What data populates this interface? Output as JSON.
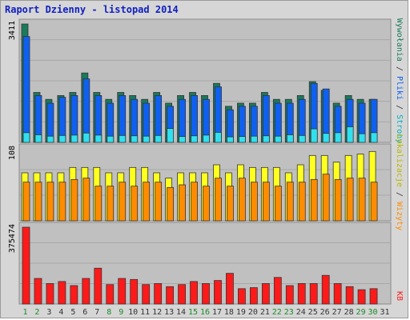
{
  "title": "Raport Dzienny -  listopad 2014",
  "colors": {
    "frame_bg": "#d6d6d6",
    "plot_bg": "#c0c0c0",
    "title": "#1020c0",
    "hits": "#1a7a5a",
    "files": "#1060f0",
    "pages": "#30e0f0",
    "visits": "#ff8c00",
    "sites": "#ffff20",
    "kb": "#ff1a1a",
    "weekend_day": "#1a8a2a",
    "weekday": "#333333"
  },
  "right_labels": {
    "top_hits": "Wywołania",
    "top_files": "Pliki",
    "top_pages": "Strony",
    "middle_visits": "Wizyty",
    "middle_sites": "Lokalizacje",
    "bottom": "KB",
    "sep": " / "
  },
  "chart_data": [
    {
      "type": "bar",
      "panel": "top",
      "ymax_label": "3411",
      "ylim": [
        0,
        3411
      ],
      "categories": [
        "1",
        "2",
        "3",
        "4",
        "5",
        "6",
        "7",
        "8",
        "9",
        "10",
        "11",
        "12",
        "13",
        "14",
        "15",
        "16",
        "17",
        "18",
        "19",
        "20",
        "21",
        "22",
        "23",
        "24",
        "25",
        "26",
        "27",
        "28",
        "29",
        "30",
        "31"
      ],
      "series": [
        {
          "name": "Wywołania",
          "values": [
            3411,
            1440,
            1240,
            1350,
            1440,
            2000,
            1440,
            1240,
            1440,
            1350,
            1240,
            1440,
            1130,
            1350,
            1440,
            1350,
            1700,
            1040,
            1130,
            1130,
            1440,
            1240,
            1240,
            1350,
            1750,
            1500,
            1130,
            1350,
            1240,
            1240,
            0
          ]
        },
        {
          "name": "Pliki",
          "values": [
            3050,
            1350,
            1130,
            1300,
            1350,
            1830,
            1350,
            1130,
            1350,
            1240,
            1130,
            1350,
            1040,
            1240,
            1350,
            1240,
            1600,
            940,
            1040,
            1040,
            1350,
            1130,
            1130,
            1240,
            1700,
            1540,
            1040,
            1240,
            1130,
            1240,
            0
          ]
        },
        {
          "name": "Strony",
          "values": [
            280,
            220,
            180,
            200,
            210,
            270,
            210,
            180,
            200,
            190,
            180,
            200,
            400,
            170,
            190,
            210,
            290,
            160,
            170,
            180,
            190,
            180,
            220,
            200,
            390,
            260,
            280,
            450,
            250,
            280,
            0
          ]
        }
      ]
    },
    {
      "type": "bar",
      "panel": "middle",
      "ymax_label": "108",
      "ylim": [
        0,
        108
      ],
      "categories": [
        "1",
        "2",
        "3",
        "4",
        "5",
        "6",
        "7",
        "8",
        "9",
        "10",
        "11",
        "12",
        "13",
        "14",
        "15",
        "16",
        "17",
        "18",
        "19",
        "20",
        "21",
        "22",
        "23",
        "24",
        "25",
        "26",
        "27",
        "28",
        "29",
        "30",
        "31"
      ],
      "series": [
        {
          "name": "Lokalizacje",
          "values": [
            72,
            72,
            72,
            72,
            80,
            80,
            80,
            72,
            72,
            80,
            80,
            72,
            64,
            72,
            72,
            72,
            84,
            72,
            84,
            80,
            80,
            80,
            72,
            84,
            98,
            98,
            88,
            98,
            100,
            104,
            0
          ]
        },
        {
          "name": "Wizyty",
          "values": [
            58,
            58,
            58,
            58,
            62,
            64,
            52,
            52,
            58,
            52,
            58,
            58,
            50,
            54,
            58,
            52,
            64,
            52,
            64,
            58,
            58,
            52,
            58,
            58,
            62,
            70,
            62,
            64,
            64,
            58,
            0
          ]
        }
      ]
    },
    {
      "type": "bar",
      "panel": "bottom",
      "ymax_label": "375474",
      "ylim": [
        0,
        375474
      ],
      "categories": [
        "1",
        "2",
        "3",
        "4",
        "5",
        "6",
        "7",
        "8",
        "9",
        "10",
        "11",
        "12",
        "13",
        "14",
        "15",
        "16",
        "17",
        "18",
        "19",
        "20",
        "21",
        "22",
        "23",
        "24",
        "25",
        "26",
        "27",
        "28",
        "29",
        "30",
        "31"
      ],
      "series": [
        {
          "name": "KB",
          "values": [
            375474,
            125000,
            100000,
            110000,
            90000,
            125000,
            175000,
            95000,
            125000,
            120000,
            95000,
            100000,
            85000,
            95000,
            110000,
            100000,
            115000,
            150000,
            75000,
            80000,
            100000,
            130000,
            90000,
            100000,
            100000,
            140000,
            100000,
            85000,
            70000,
            75000,
            0
          ]
        }
      ]
    }
  ]
}
